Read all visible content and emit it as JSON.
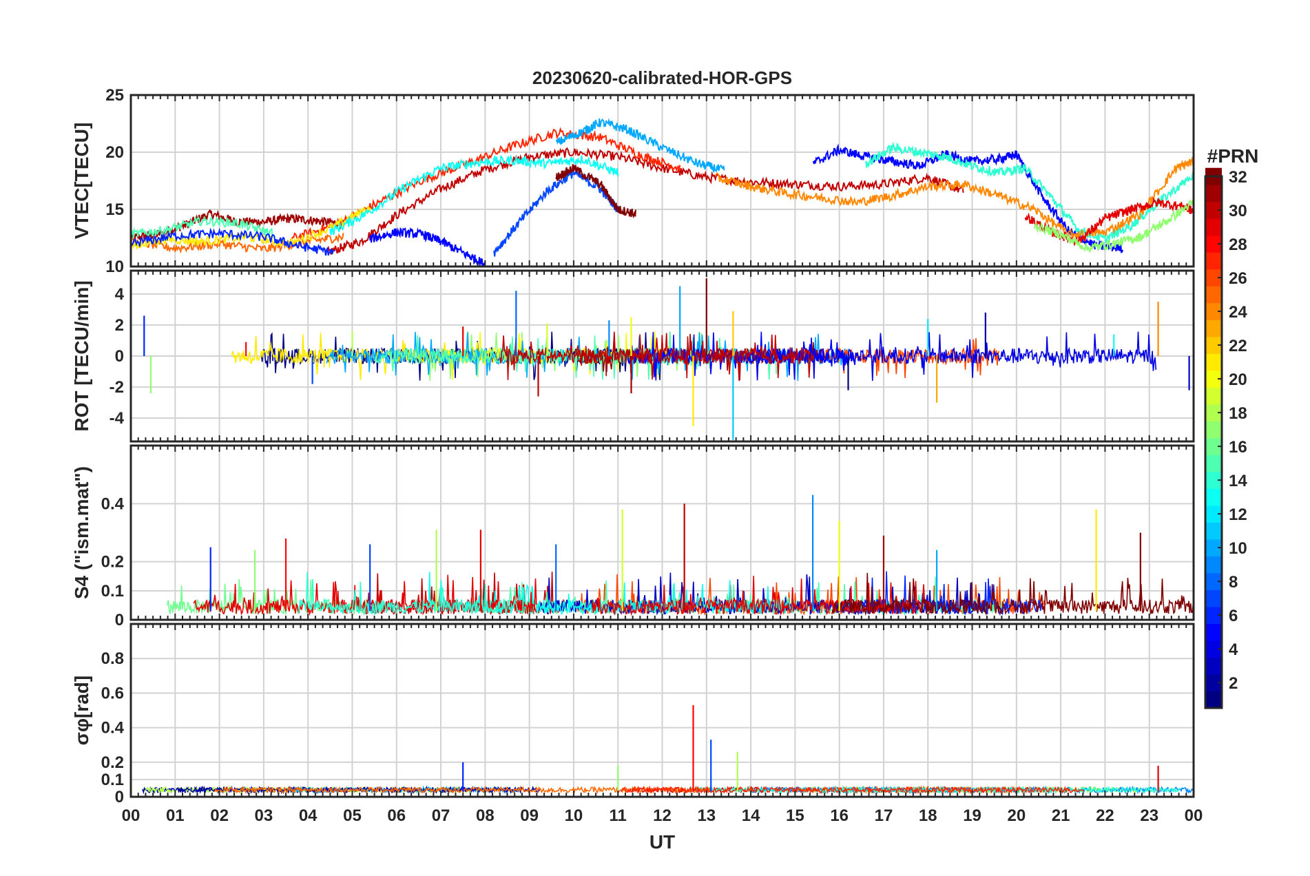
{
  "chart_data": {
    "type": "line",
    "title": "20230620-calibrated-HOR-GPS",
    "xlabel": "UT",
    "xlim": [
      0,
      24
    ],
    "x_tick_labels": [
      "00",
      "01",
      "02",
      "03",
      "04",
      "05",
      "06",
      "07",
      "08",
      "09",
      "10",
      "11",
      "12",
      "13",
      "14",
      "15",
      "16",
      "17",
      "18",
      "19",
      "20",
      "21",
      "22",
      "23",
      "00"
    ],
    "colorbar": {
      "label": "#PRN",
      "range": [
        1,
        32
      ],
      "ticks": [
        "2",
        "4",
        "6",
        "8",
        "10",
        "12",
        "14",
        "16",
        "18",
        "20",
        "22",
        "24",
        "26",
        "28",
        "30",
        "32"
      ],
      "colormap": "jet"
    },
    "panels": [
      {
        "ylabel": "VTEC[TECU]",
        "ylim": [
          10,
          25
        ],
        "yticks": [
          "10",
          "15",
          "20",
          "25"
        ],
        "series": [
          {
            "name": "PRN 31",
            "x": [
              0,
              0.6,
              1.2,
              1.8,
              2.4,
              3.0,
              3.6,
              4.2,
              4.8
            ],
            "values": [
              12.5,
              12.8,
              13.6,
              14.6,
              13.9,
              13.9,
              14.2,
              14.0,
              13.7
            ]
          },
          {
            "name": "PRN 30",
            "x": [
              4.4,
              5.2,
              6.0,
              7.0,
              8.0,
              9.0,
              10.0,
              11.0,
              12.0,
              13.0,
              14.0,
              15.0,
              16.0,
              17.0,
              18.0,
              18.8
            ],
            "values": [
              11.2,
              12.2,
              14.5,
              16.8,
              18.5,
              19.6,
              20.0,
              19.6,
              18.6,
              17.8,
              17.4,
              17.2,
              17.0,
              17.2,
              17.8,
              16.6
            ]
          },
          {
            "name": "PRN 27",
            "x": [
              3.6,
              4.6,
              5.6,
              6.6,
              7.6,
              8.6,
              9.6,
              10.6,
              11.6,
              12.4
            ],
            "values": [
              12.4,
              13.6,
              15.6,
              17.6,
              19.0,
              20.5,
              21.7,
              21.3,
              19.6,
              18.6
            ]
          },
          {
            "name": "PRN 25",
            "x": [
              0,
              1.0,
              2.0,
              3.0,
              4.0,
              4.8
            ],
            "values": [
              12.2,
              11.6,
              12.0,
              11.5,
              12.2,
              12.6
            ]
          },
          {
            "name": "PRN 21",
            "x": [
              0,
              0.8,
              1.6,
              2.6,
              3.6,
              4.6,
              5.4
            ],
            "values": [
              11.8,
              12.4,
              12.2,
              12.6,
              12.0,
              13.5,
              15.2
            ]
          },
          {
            "name": "PRN 13",
            "x": [
              4.5,
              5.3,
              6.2,
              7.0,
              7.8,
              8.6,
              9.4,
              10.2,
              11.0
            ],
            "values": [
              13.0,
              14.6,
              17.0,
              18.6,
              19.1,
              19.3,
              19.0,
              19.4,
              18.2
            ]
          },
          {
            "name": "PRN 15",
            "x": [
              0,
              0.8,
              1.6,
              2.4,
              3.2
            ],
            "values": [
              12.8,
              13.2,
              14.0,
              13.8,
              12.9
            ]
          },
          {
            "name": "PRN 10",
            "x": [
              9.6,
              10.2,
              10.6,
              11.2,
              12.0,
              12.8,
              13.4
            ],
            "values": [
              20.8,
              21.8,
              22.6,
              22.0,
              20.4,
              19.0,
              18.4
            ]
          },
          {
            "name": "PRN 6",
            "x": [
              0,
              1.0,
              2.0,
              3.0,
              3.8,
              4.6
            ],
            "values": [
              12.0,
              12.7,
              12.9,
              12.6,
              11.8,
              11.2
            ]
          },
          {
            "name": "PRN 5",
            "x": [
              5.4,
              6.0,
              6.6,
              7.0,
              7.6,
              8.0
            ],
            "values": [
              12.4,
              13.0,
              12.8,
              12.2,
              11.0,
              10.2
            ]
          },
          {
            "name": "PRN 7",
            "x": [
              8.2,
              8.8,
              9.4,
              10.0,
              10.6,
              11.0
            ],
            "values": [
              11.2,
              14.0,
              16.6,
              18.2,
              16.8,
              15.0
            ]
          },
          {
            "name": "PRN 32",
            "x": [
              9.6,
              10.0,
              10.6,
              11.0,
              11.4
            ],
            "values": [
              17.8,
              18.6,
              17.2,
              15.0,
              14.6
            ]
          },
          {
            "name": "PRN 5b",
            "x": [
              15.4,
              16.0,
              16.6,
              17.2,
              17.8,
              18.4,
              19.0,
              19.6,
              20.0,
              20.6,
              21.2,
              21.8,
              22.4
            ],
            "values": [
              19.0,
              20.2,
              19.6,
              19.2,
              18.8,
              19.8,
              19.2,
              19.4,
              19.8,
              16.0,
              13.0,
              11.8,
              11.6
            ]
          },
          {
            "name": "PRN 14",
            "x": [
              16.6,
              17.2,
              17.8,
              18.4,
              19.0,
              19.6,
              20.2,
              20.8,
              21.4,
              22.0,
              22.6,
              23.2,
              24.0
            ],
            "values": [
              19.0,
              20.4,
              20.0,
              19.6,
              18.8,
              18.2,
              18.6,
              16.0,
              13.2,
              12.4,
              13.6,
              15.6,
              18.0
            ]
          },
          {
            "name": "PRN 24",
            "x": [
              13.2,
              14.0,
              14.8,
              15.6,
              16.4,
              17.2,
              18.0,
              18.8,
              19.6,
              20.4,
              21.2,
              22.0,
              22.8,
              23.6,
              24.0
            ],
            "values": [
              17.8,
              17.0,
              16.4,
              16.0,
              15.6,
              16.2,
              17.0,
              17.2,
              16.2,
              15.0,
              12.8,
              13.0,
              14.6,
              18.6,
              19.2
            ]
          },
          {
            "name": "PRN 29",
            "x": [
              20.2,
              20.8,
              21.4,
              22.0,
              22.6,
              23.2,
              23.8,
              24.0
            ],
            "values": [
              14.4,
              13.0,
              12.2,
              14.2,
              15.0,
              15.6,
              15.2,
              14.8
            ]
          },
          {
            "name": "PRN 17",
            "x": [
              20.4,
              21.0,
              21.6,
              22.2,
              22.8,
              23.4,
              24.0
            ],
            "values": [
              13.6,
              12.8,
              11.6,
              12.0,
              12.6,
              14.0,
              15.6
            ]
          }
        ]
      },
      {
        "ylabel": "ROT [TECU/min]",
        "ylim": [
          -5.5,
          5.5
        ],
        "yticks": [
          "-4",
          "-2",
          "0",
          "2",
          "4"
        ],
        "peaks": [
          {
            "x": 0.3,
            "y": 2.6
          },
          {
            "x": 0.45,
            "y": -2.4
          },
          {
            "x": 2.6,
            "y": 0.9
          },
          {
            "x": 4.1,
            "y": -1.8
          },
          {
            "x": 5.0,
            "y": 1.6
          },
          {
            "x": 7.5,
            "y": 1.9
          },
          {
            "x": 8.7,
            "y": 4.2
          },
          {
            "x": 9.4,
            "y": 2.1
          },
          {
            "x": 9.2,
            "y": -2.6
          },
          {
            "x": 10.8,
            "y": 2.3
          },
          {
            "x": 11.3,
            "y": 2.5
          },
          {
            "x": 11.3,
            "y": -2.4
          },
          {
            "x": 12.4,
            "y": 4.5
          },
          {
            "x": 12.7,
            "y": -4.5
          },
          {
            "x": 13.0,
            "y": 5.0
          },
          {
            "x": 13.6,
            "y": -5.4
          },
          {
            "x": 13.6,
            "y": 2.9
          },
          {
            "x": 16.2,
            "y": -2.2
          },
          {
            "x": 18.0,
            "y": 2.4
          },
          {
            "x": 18.2,
            "y": -3.0
          },
          {
            "x": 19.3,
            "y": 2.8
          },
          {
            "x": 22.2,
            "y": 1.4
          },
          {
            "x": 23.2,
            "y": 3.5
          },
          {
            "x": 23.9,
            "y": -2.2
          }
        ]
      },
      {
        "ylabel": "S4 (\"ism.mat\")",
        "ylim": [
          0,
          0.6
        ],
        "yticks": [
          "0",
          "0.1",
          "0.2",
          "0.4"
        ],
        "peaks": [
          {
            "x": 1.8,
            "y": 0.25
          },
          {
            "x": 2.8,
            "y": 0.24
          },
          {
            "x": 3.5,
            "y": 0.28
          },
          {
            "x": 5.4,
            "y": 0.26
          },
          {
            "x": 6.9,
            "y": 0.31
          },
          {
            "x": 7.9,
            "y": 0.31
          },
          {
            "x": 9.6,
            "y": 0.26
          },
          {
            "x": 11.1,
            "y": 0.38
          },
          {
            "x": 12.5,
            "y": 0.4
          },
          {
            "x": 15.4,
            "y": 0.43
          },
          {
            "x": 16.0,
            "y": 0.34
          },
          {
            "x": 17.0,
            "y": 0.29
          },
          {
            "x": 18.2,
            "y": 0.24
          },
          {
            "x": 21.8,
            "y": 0.38
          },
          {
            "x": 22.8,
            "y": 0.3
          }
        ]
      },
      {
        "ylabel": "σφ[rad]",
        "ylim": [
          0,
          1
        ],
        "yticks": [
          "0",
          "0.1",
          "0.2",
          "0.4",
          "0.6",
          "0.8"
        ],
        "peaks": [
          {
            "x": 7.5,
            "y": 0.2
          },
          {
            "x": 11.0,
            "y": 0.18
          },
          {
            "x": 12.7,
            "y": 0.53
          },
          {
            "x": 13.1,
            "y": 0.33
          },
          {
            "x": 13.7,
            "y": 0.26
          },
          {
            "x": 23.2,
            "y": 0.18
          }
        ]
      }
    ]
  }
}
